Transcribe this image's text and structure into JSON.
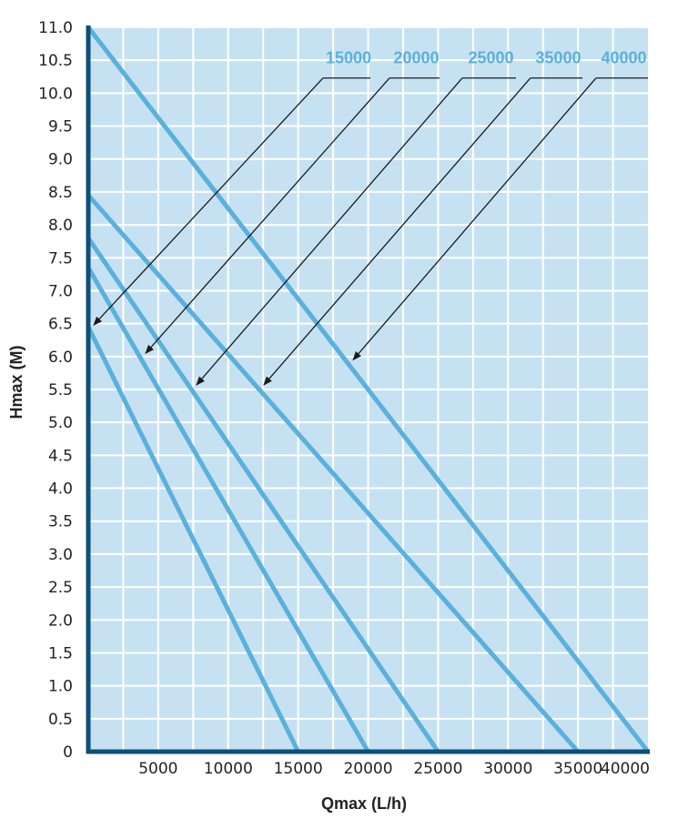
{
  "chart_data": {
    "type": "line",
    "title": "",
    "xlabel": "Qmax (L/h)",
    "ylabel": "Hmax (M)",
    "xlim": [
      0,
      40000
    ],
    "ylim": [
      0,
      11
    ],
    "grid": true,
    "x_ticks": [
      "5000",
      "10000",
      "15000",
      "20000",
      "25000",
      "30000",
      "35000",
      "40000"
    ],
    "x_tick_values": [
      5000,
      10000,
      15000,
      20000,
      25000,
      30000,
      35000,
      40000
    ],
    "y_ticks": [
      "0",
      "0.5",
      "1.0",
      "1.5",
      "2.0",
      "2.5",
      "3.0",
      "3.5",
      "4.0",
      "4.5",
      "5.0",
      "5.5",
      "6.0",
      "6.5",
      "7.0",
      "7.5",
      "8.0",
      "8.5",
      "9.0",
      "9.5",
      "10.0",
      "10.5",
      "11.0"
    ],
    "y_tick_values": [
      0,
      0.5,
      1,
      1.5,
      2,
      2.5,
      3,
      3.5,
      4,
      4.5,
      5,
      5.5,
      6,
      6.5,
      7,
      7.5,
      8,
      8.5,
      9,
      9.5,
      10,
      10.5,
      11
    ],
    "series": [
      {
        "name": "15000",
        "x": [
          0,
          15000
        ],
        "y": [
          6.45,
          0
        ],
        "arrow_to": [
          390,
          6.48
        ],
        "elbow": [
          16780,
          10.23
        ],
        "underline_end": 20160
      },
      {
        "name": "20000",
        "x": [
          0,
          20000
        ],
        "y": [
          7.35,
          0
        ],
        "arrow_to": [
          4100,
          6.05
        ],
        "elbow": [
          21530,
          10.23
        ],
        "underline_end": 25100
      },
      {
        "name": "25000",
        "x": [
          0,
          25000
        ],
        "y": [
          7.8,
          0
        ],
        "arrow_to": [
          7740,
          5.57
        ],
        "elbow": [
          26730,
          10.23
        ],
        "underline_end": 30570
      },
      {
        "name": "35000",
        "x": [
          0,
          35000
        ],
        "y": [
          8.45,
          0
        ],
        "arrow_to": [
          12550,
          5.57
        ],
        "elbow": [
          31600,
          10.23
        ],
        "underline_end": 35320
      },
      {
        "name": "40000",
        "x": [
          0,
          40000
        ],
        "y": [
          11.0,
          0
        ],
        "arrow_to": [
          18930,
          5.95
        ],
        "elbow": [
          36290,
          10.23
        ],
        "underline_end": 40000
      }
    ],
    "colors": {
      "background": "#c6e2f2",
      "grid": "#ffffff",
      "line": "#5bb0dc",
      "axis": "#0d4f7a",
      "leader": "#1a1a1a"
    }
  }
}
